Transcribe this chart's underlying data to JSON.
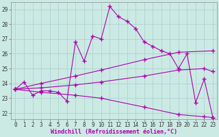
{
  "background_color": "#cceae4",
  "grid_color": "#aacccc",
  "line_color": "#aa00aa",
  "marker": "+",
  "markersize": 4,
  "markeredgewidth": 1.0,
  "linewidth": 0.8,
  "xlabel": "Windchill (Refroidissement éolien,°C)",
  "xlabel_fontsize": 6,
  "tick_fontsize": 5.5,
  "xlim": [
    -0.5,
    23.5
  ],
  "ylim": [
    21.6,
    29.5
  ],
  "yticks": [
    22,
    23,
    24,
    25,
    26,
    27,
    28,
    29
  ],
  "xticks": [
    0,
    1,
    2,
    3,
    4,
    5,
    6,
    7,
    8,
    9,
    10,
    11,
    12,
    13,
    14,
    15,
    16,
    17,
    18,
    19,
    20,
    21,
    22,
    23
  ],
  "lines": [
    {
      "x": [
        0,
        1,
        2,
        3,
        4,
        5,
        6,
        7,
        8,
        9,
        10,
        11,
        12,
        13,
        14,
        15,
        16,
        17,
        18,
        19,
        20,
        21,
        22,
        23
      ],
      "y": [
        23.6,
        24.1,
        23.2,
        23.5,
        23.5,
        23.4,
        22.8,
        26.8,
        25.5,
        27.2,
        27.0,
        29.2,
        28.5,
        28.2,
        27.7,
        26.8,
        26.5,
        26.2,
        26.0,
        25.0,
        26.0,
        22.7,
        24.3,
        21.7
      ]
    },
    {
      "x": [
        0,
        3,
        7,
        10,
        15,
        19,
        23
      ],
      "y": [
        23.6,
        24.0,
        24.5,
        24.9,
        25.6,
        26.1,
        26.2
      ]
    },
    {
      "x": [
        0,
        3,
        7,
        10,
        15,
        19,
        22,
        23
      ],
      "y": [
        23.6,
        23.7,
        23.9,
        24.1,
        24.5,
        24.9,
        25.0,
        24.8
      ]
    },
    {
      "x": [
        0,
        3,
        7,
        10,
        15,
        19,
        22,
        23
      ],
      "y": [
        23.6,
        23.4,
        23.2,
        23.0,
        22.4,
        21.9,
        21.75,
        21.7
      ]
    }
  ]
}
